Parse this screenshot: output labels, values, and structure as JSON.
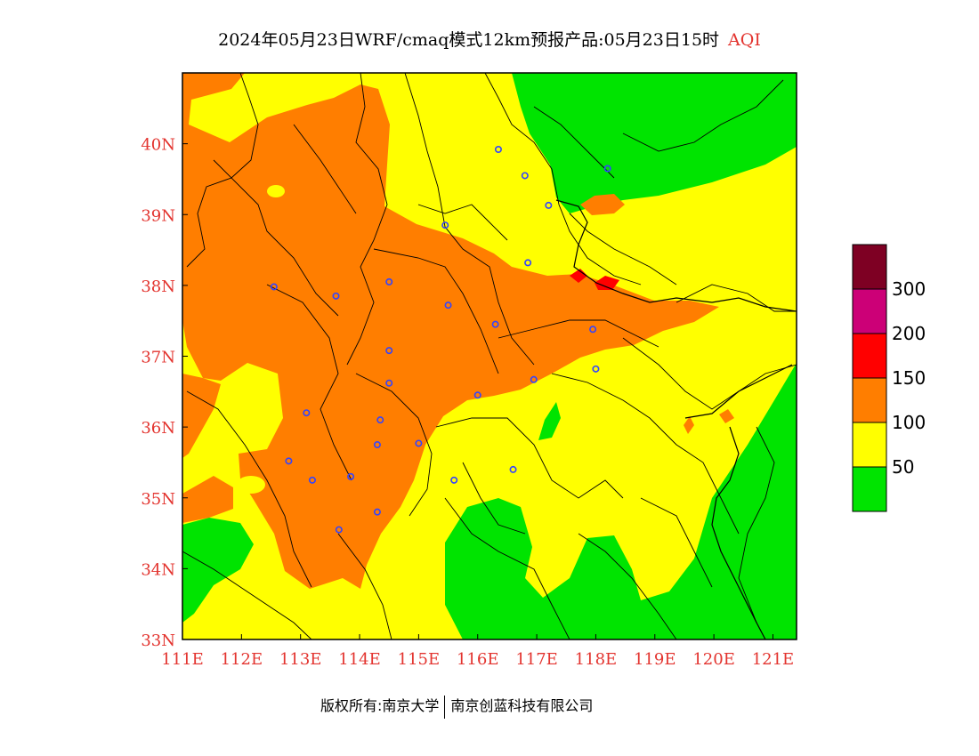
{
  "title": {
    "main": "2024年05月23日WRF/cmaq模式12km预报产品:05月23日15时",
    "variable": "AQI"
  },
  "map": {
    "lon_range": [
      111,
      121.4
    ],
    "lat_range": [
      33,
      41
    ],
    "lon_ticks": [
      {
        "value": 111,
        "label": "111E"
      },
      {
        "value": 112,
        "label": "112E"
      },
      {
        "value": 113,
        "label": "113E"
      },
      {
        "value": 114,
        "label": "114E"
      },
      {
        "value": 115,
        "label": "115E"
      },
      {
        "value": 116,
        "label": "116E"
      },
      {
        "value": 117,
        "label": "117E"
      },
      {
        "value": 118,
        "label": "118E"
      },
      {
        "value": 119,
        "label": "119E"
      },
      {
        "value": 120,
        "label": "120E"
      },
      {
        "value": 121,
        "label": "121E"
      }
    ],
    "lat_ticks": [
      {
        "value": 33,
        "label": "33N"
      },
      {
        "value": 34,
        "label": "34N"
      },
      {
        "value": 35,
        "label": "35N"
      },
      {
        "value": 36,
        "label": "36N"
      },
      {
        "value": 37,
        "label": "37N"
      },
      {
        "value": 38,
        "label": "38N"
      },
      {
        "value": 39,
        "label": "39N"
      },
      {
        "value": 40,
        "label": "40N"
      }
    ],
    "tick_label_color": "#e3342f",
    "cities": [
      [
        116.35,
        39.92
      ],
      [
        116.8,
        39.55
      ],
      [
        117.2,
        39.13
      ],
      [
        118.2,
        39.65
      ],
      [
        115.45,
        38.85
      ],
      [
        116.85,
        38.32
      ],
      [
        112.55,
        37.98
      ],
      [
        113.6,
        37.85
      ],
      [
        114.5,
        38.05
      ],
      [
        115.5,
        37.72
      ],
      [
        116.3,
        37.45
      ],
      [
        117.95,
        37.38
      ],
      [
        118.0,
        36.82
      ],
      [
        116.95,
        36.67
      ],
      [
        114.5,
        37.08
      ],
      [
        114.5,
        36.62
      ],
      [
        116.0,
        36.45
      ],
      [
        113.1,
        36.2
      ],
      [
        114.35,
        36.1
      ],
      [
        112.8,
        35.52
      ],
      [
        114.3,
        35.75
      ],
      [
        115.0,
        35.77
      ],
      [
        113.2,
        35.25
      ],
      [
        113.85,
        35.3
      ],
      [
        115.6,
        35.25
      ],
      [
        116.6,
        35.4
      ],
      [
        114.3,
        34.8
      ],
      [
        113.65,
        34.55
      ]
    ]
  },
  "legend": {
    "items": [
      {
        "color": "#00e400",
        "label": "50"
      },
      {
        "color": "#ffff00",
        "label": "100"
      },
      {
        "color": "#ff7e00",
        "label": "150"
      },
      {
        "color": "#ff0000",
        "label": "200"
      },
      {
        "color": "#cc0077",
        "label": "300"
      },
      {
        "color": "#7e0023",
        "label": ""
      }
    ]
  },
  "footer": {
    "left": "版权所有:南京大学",
    "right": "南京创蓝科技有限公司"
  }
}
